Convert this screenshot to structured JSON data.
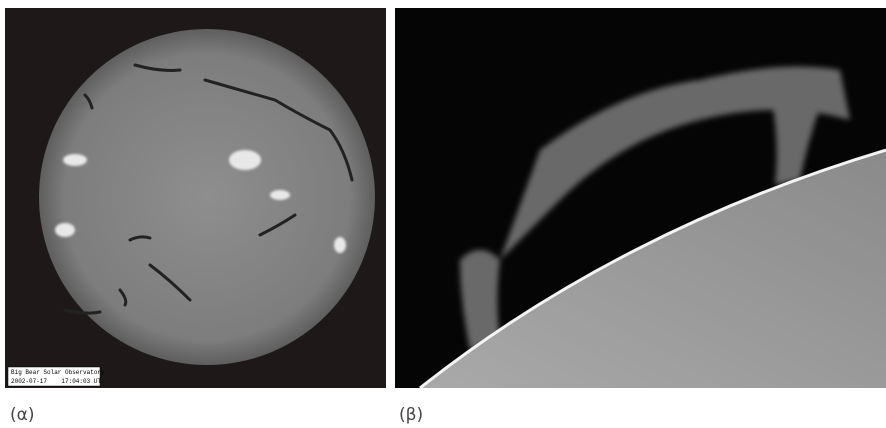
{
  "panel_a": {
    "stamp": [
      "Big Bear Solar Observatory",
      "2002-07-17    17:04:03 UT"
    ],
    "caption": "(α)"
  },
  "panel_b": {
    "caption": "(β)"
  }
}
